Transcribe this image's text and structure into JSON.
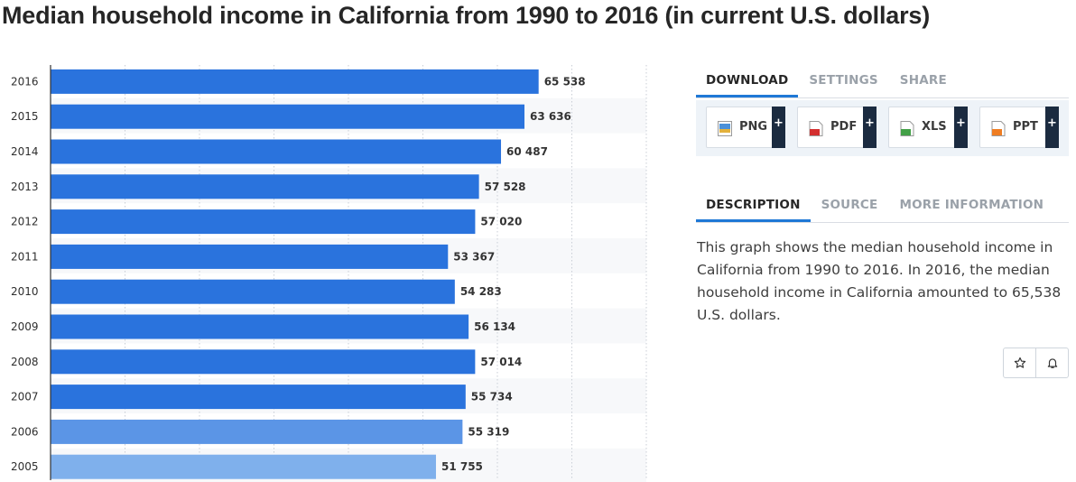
{
  "page": {
    "title": "Median household income in California from 1990 to 2016 (in current U.S. dollars)"
  },
  "colors": {
    "bar": "#2a73dd",
    "bar_faded": "#7fb0ec",
    "accent": "#1f78d6",
    "panel_bg": "#eef3f8"
  },
  "chart_data": {
    "type": "bar",
    "orientation": "horizontal",
    "title": "Median household income in California from 1990 to 2016 (in current U.S. dollars)",
    "xlabel": "",
    "ylabel": "",
    "categories": [
      "2016",
      "2015",
      "2014",
      "2013",
      "2012",
      "2011",
      "2010",
      "2009",
      "2008",
      "2007",
      "2006",
      "2005"
    ],
    "values": [
      65538,
      63636,
      60487,
      57528,
      57020,
      53367,
      54283,
      56134,
      57014,
      55734,
      55319,
      51755
    ],
    "value_labels": [
      "65 538",
      "63 636",
      "60 487",
      "57 528",
      "57 020",
      "53 367",
      "54 283",
      "56 134",
      "57 014",
      "55 734",
      "55 319",
      "51 755"
    ],
    "xlim": [
      0,
      80000
    ],
    "gridlines": [
      10000,
      20000,
      30000,
      40000,
      50000,
      60000,
      70000,
      80000
    ]
  },
  "download": {
    "tabs": [
      {
        "label": "DOWNLOAD",
        "active": true
      },
      {
        "label": "SETTINGS",
        "active": false
      },
      {
        "label": "SHARE",
        "active": false
      }
    ],
    "buttons": [
      {
        "label": "PNG",
        "icon": "png-file-icon",
        "plus": "+"
      },
      {
        "label": "PDF",
        "icon": "pdf-file-icon",
        "plus": "+"
      },
      {
        "label": "XLS",
        "icon": "xls-file-icon",
        "plus": "+"
      },
      {
        "label": "PPT",
        "icon": "ppt-file-icon",
        "plus": "+"
      }
    ]
  },
  "info": {
    "tabs": [
      {
        "label": "DESCRIPTION",
        "active": true
      },
      {
        "label": "SOURCE",
        "active": false
      },
      {
        "label": "MORE INFORMATION",
        "active": false
      }
    ],
    "description": "This graph shows the median household income in California from 1990 to 2016. In 2016, the median household income in California amounted to 65,538 U.S. dollars."
  },
  "actions": [
    {
      "name": "favorite",
      "icon": "star-icon"
    },
    {
      "name": "notify",
      "icon": "bell-icon"
    }
  ]
}
